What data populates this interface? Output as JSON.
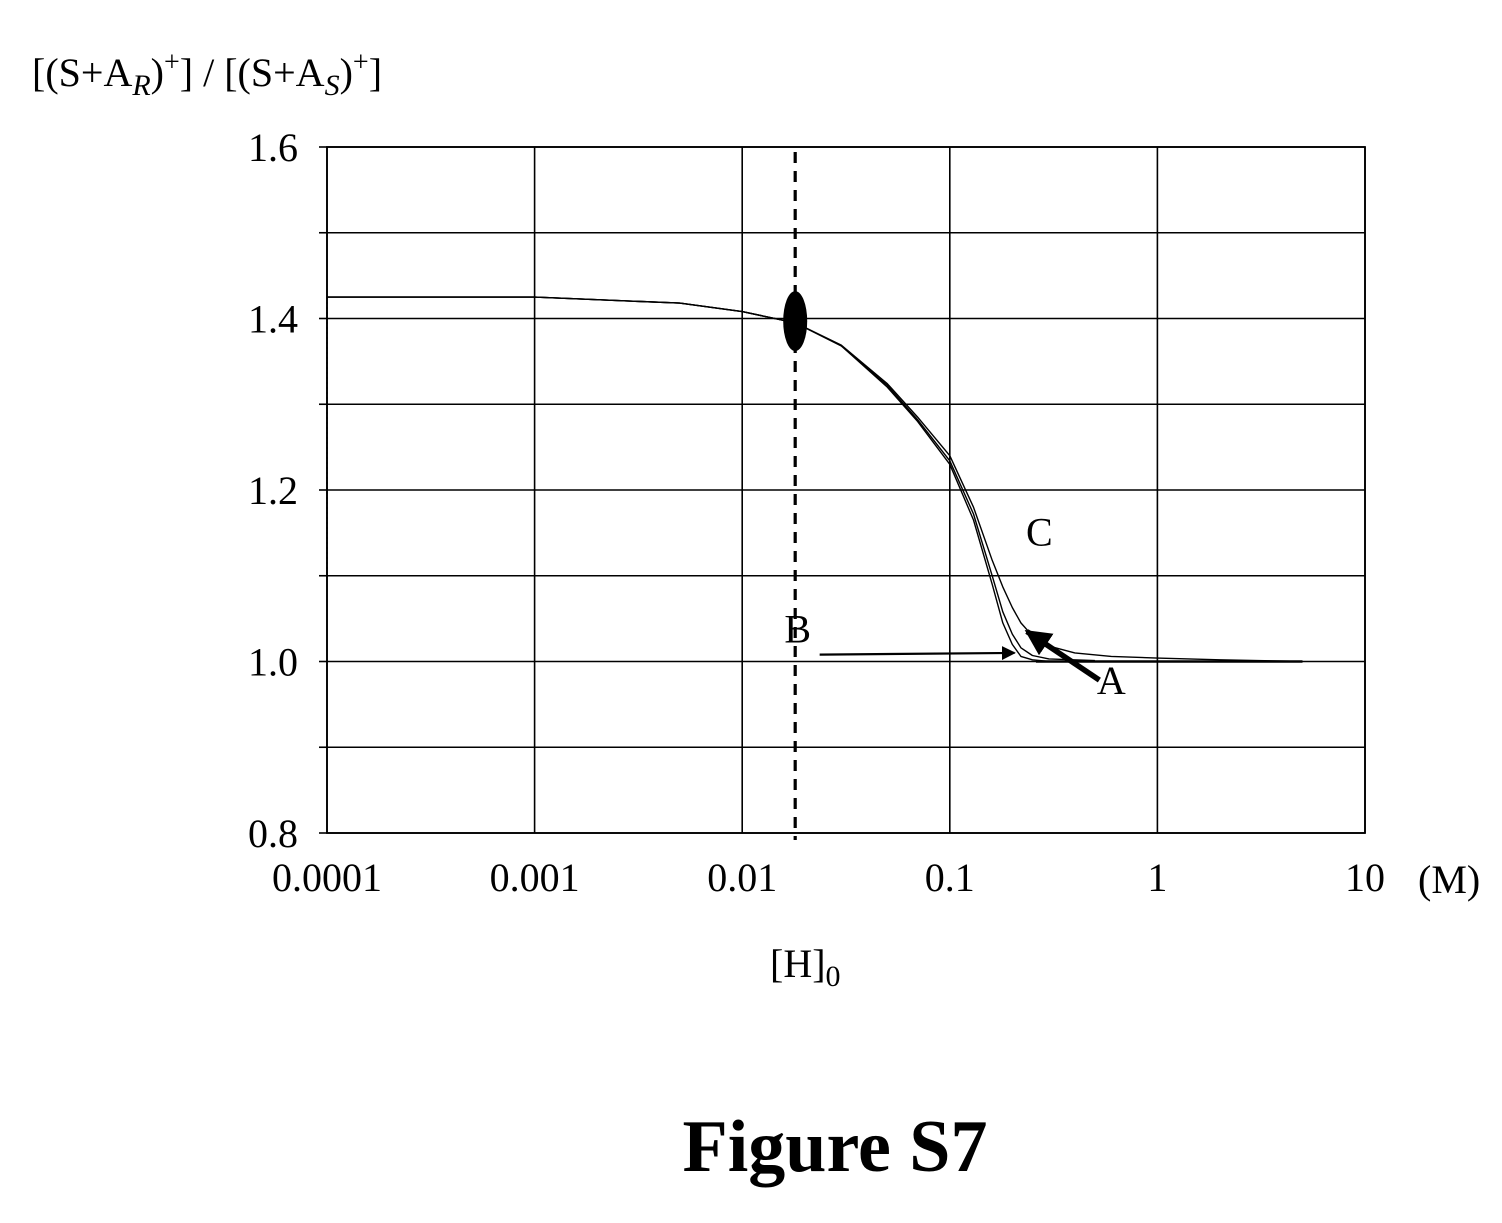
{
  "figure_label": "Figure S7",
  "chart_data": {
    "type": "line",
    "x_scale": "log",
    "xlim": [
      0.0001,
      10
    ],
    "ylim": [
      0.8,
      1.6
    ],
    "x_ticks": [
      0.0001,
      0.001,
      0.01,
      0.1,
      1,
      10
    ],
    "x_tick_labels": [
      "0.0001",
      "0.001",
      "0.01",
      "0.1",
      "1",
      "10"
    ],
    "y_ticks": [
      0.8,
      1.0,
      1.2,
      1.4,
      1.6
    ],
    "y_tick_labels": [
      "0.8",
      "1.0",
      "1.2",
      "1.4",
      "1.6"
    ],
    "y_gridlines": [
      0.8,
      0.9,
      1.0,
      1.1,
      1.2,
      1.3,
      1.4,
      1.5,
      1.6
    ],
    "grid": true,
    "xlabel": {
      "main": "[H]",
      "sub": "0"
    },
    "x_unit": "(M)",
    "ylabel": {
      "part1": "[(S+A",
      "sub1": "R",
      "part2": ")",
      "sup1": "+",
      "part3": "] / [(S+A",
      "sub2": "S",
      "part4": ")",
      "sup2": "+",
      "part5": "]"
    },
    "legend": "none",
    "reference_line": {
      "x": 0.018,
      "style": "dashed"
    },
    "marker": {
      "x": 0.018,
      "y": 1.397,
      "shape": "ellipse"
    },
    "series": [
      {
        "name": "A",
        "x": [
          0.0001,
          0.001,
          0.005,
          0.01,
          0.018,
          0.03,
          0.05,
          0.07,
          0.1,
          0.13,
          0.16,
          0.18,
          0.2,
          0.22,
          0.25,
          0.3,
          0.5
        ],
        "y": [
          1.425,
          1.425,
          1.418,
          1.408,
          1.395,
          1.368,
          1.32,
          1.28,
          1.23,
          1.165,
          1.09,
          1.045,
          1.02,
          1.006,
          1.002,
          1.0,
          1.0
        ]
      },
      {
        "name": "B",
        "x": [
          0.0001,
          0.001,
          0.005,
          0.01,
          0.018,
          0.03,
          0.05,
          0.07,
          0.1,
          0.13,
          0.16,
          0.18,
          0.2,
          0.22,
          0.25,
          0.3,
          0.5
        ],
        "y": [
          1.425,
          1.425,
          1.418,
          1.408,
          1.395,
          1.368,
          1.322,
          1.282,
          1.234,
          1.172,
          1.1,
          1.058,
          1.032,
          1.016,
          1.007,
          1.003,
          1.001
        ]
      },
      {
        "name": "C",
        "x": [
          0.0001,
          0.001,
          0.005,
          0.01,
          0.018,
          0.03,
          0.05,
          0.07,
          0.1,
          0.13,
          0.16,
          0.18,
          0.2,
          0.22,
          0.25,
          0.3,
          0.4,
          0.6,
          1,
          2,
          5
        ],
        "y": [
          1.425,
          1.425,
          1.418,
          1.408,
          1.395,
          1.369,
          1.324,
          1.285,
          1.24,
          1.18,
          1.118,
          1.087,
          1.063,
          1.045,
          1.03,
          1.018,
          1.01,
          1.006,
          1.004,
          1.002,
          1.0
        ]
      }
    ],
    "annotations": [
      {
        "text": "C",
        "x": 0.27,
        "y": 1.135
      },
      {
        "text": "B",
        "x": 0.0185,
        "y": 1.022,
        "arrow_to_x": 0.205,
        "arrow_to_y": 1.01
      },
      {
        "text": "A",
        "x": 0.6,
        "y": 0.962,
        "arrow_to_x": 0.235,
        "arrow_to_y": 1.035
      }
    ]
  }
}
